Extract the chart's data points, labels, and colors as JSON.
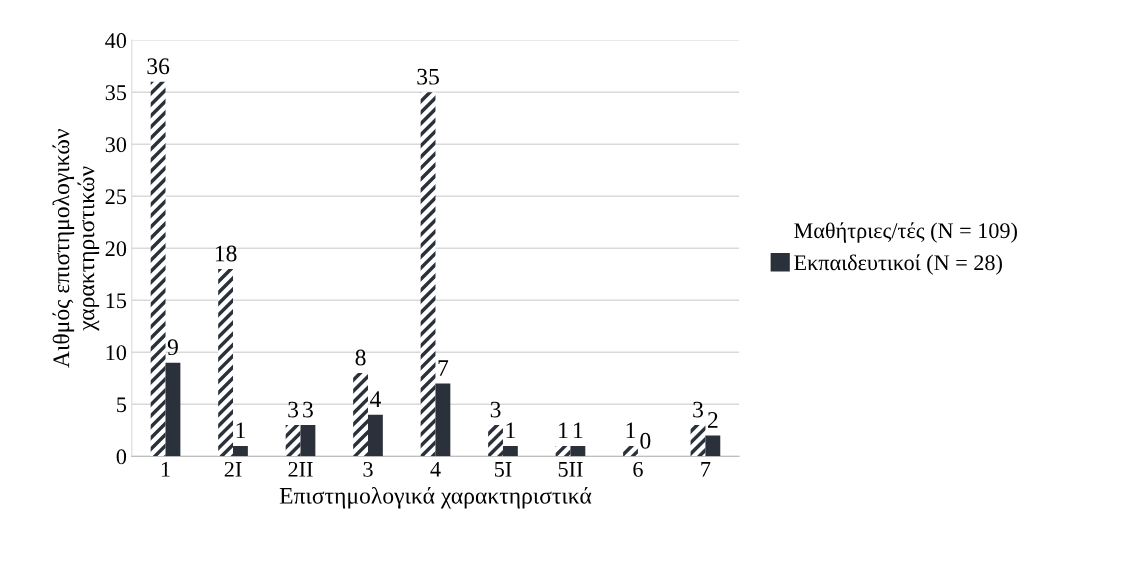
{
  "chart_data": {
    "type": "bar",
    "xlabel": "Επιστημολογικά χαρακτηριστικά",
    "ylabel": "Αιθμός επιστημολογικών\nχαρακτηριστικών",
    "categories": [
      "1",
      "2I",
      "2II",
      "3",
      "4",
      "5I",
      "5II",
      "6",
      "7"
    ],
    "series": [
      {
        "name": "Μαθήτριες/τές (N = 109)",
        "color": "#2b313b",
        "values": [
          36,
          18,
          3,
          8,
          35,
          3,
          1,
          1,
          3
        ]
      },
      {
        "name": "Εκπαιδευτικοί (N = 28)",
        "color": "#2b313b",
        "values": [
          9,
          1,
          3,
          4,
          7,
          1,
          1,
          0,
          2
        ]
      }
    ],
    "ylim": [
      0,
      40
    ],
    "yticks": [
      0,
      5,
      10,
      15,
      20,
      25,
      30,
      35,
      40
    ],
    "grid": "y",
    "legend": "right",
    "data_labels": true
  }
}
